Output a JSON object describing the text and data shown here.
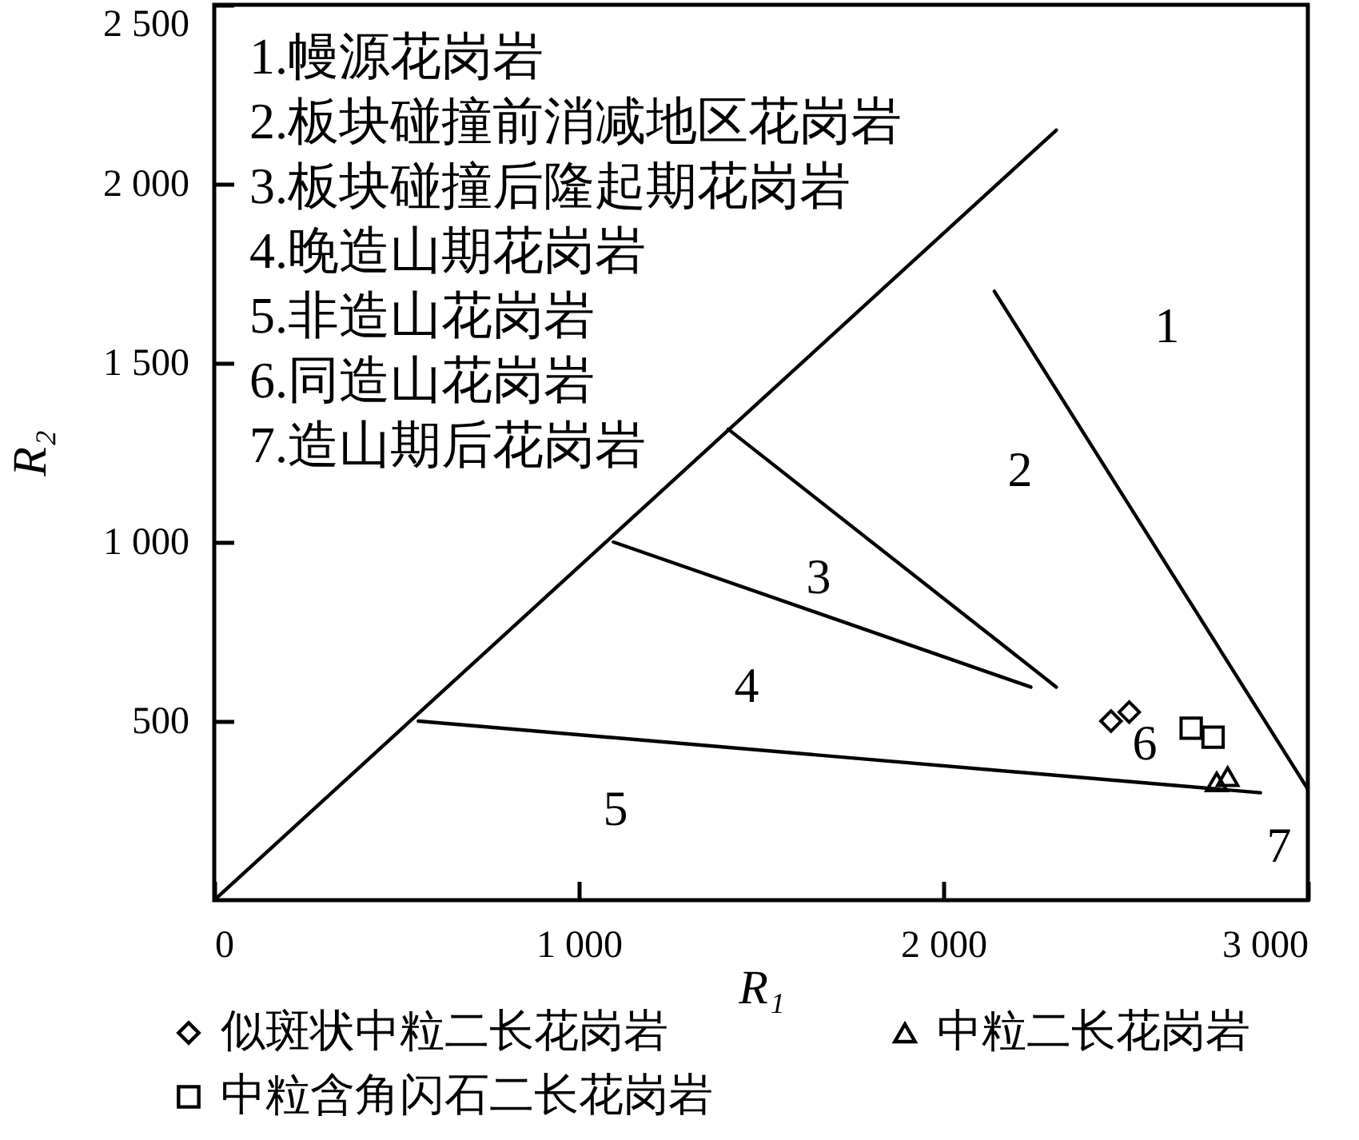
{
  "chart_data": {
    "type": "scatter",
    "xlabel": "R₁",
    "ylabel": "R₂",
    "xlim": [
      0,
      3000
    ],
    "ylim": [
      0,
      2500
    ],
    "xticks": [
      0,
      {
        "value": 1000,
        "label": "1 000"
      },
      {
        "value": 2000,
        "label": "2 000"
      },
      {
        "value": 3000,
        "label": "3 000"
      }
    ],
    "yticks": [
      500,
      {
        "value": 1000,
        "label": "1 000"
      },
      {
        "value": 1500,
        "label": "1 500"
      },
      {
        "value": 2000,
        "label": "2 000"
      },
      {
        "value": 2500,
        "label": "2 500"
      }
    ],
    "grid": false,
    "legend": "bottom",
    "series": [
      {
        "type": "line",
        "color": "#000000",
        "x": [
          0,
          2310
        ],
        "values": [
          0,
          2150
        ]
      },
      {
        "type": "line",
        "color": "#000000",
        "x": [
          2140,
          3000
        ],
        "values": [
          1700,
          310
        ]
      },
      {
        "type": "line",
        "color": "#000000",
        "x": [
          1410,
          2310
        ],
        "values": [
          1315,
          595
        ]
      },
      {
        "type": "line",
        "color": "#000000",
        "x": [
          1095,
          2240
        ],
        "values": [
          1000,
          595
        ]
      },
      {
        "type": "line",
        "color": "#000000",
        "x": [
          560,
          2870
        ],
        "values": [
          500,
          300
        ]
      },
      {
        "name": "似斑状中粒二长花岗岩",
        "type": "scatter",
        "marker": "diamond",
        "color": "#000000",
        "x": [
          2460,
          2510
        ],
        "values": [
          500,
          525
        ]
      },
      {
        "name": "中粒二长花岗岩",
        "type": "scatter",
        "marker": "triangle",
        "color": "#000000",
        "x": [
          2750,
          2780
        ],
        "values": [
          330,
          345
        ]
      },
      {
        "name": "中粒含角闪石二长花岗岩",
        "type": "scatter",
        "marker": "square",
        "color": "#000000",
        "x": [
          2680,
          2740
        ],
        "values": [
          480,
          455
        ]
      }
    ],
    "annotations": [
      "1.幔源花岗岩",
      "2.板块碰撞前消减地区花岗岩",
      "3.板块碰撞后隆起期花岗岩",
      "4.晚造山期花岗岩",
      "5.非造山花岗岩",
      "6.同造山花岗岩",
      "7.造山期后花岗岩",
      "1",
      "2",
      "3",
      "4",
      "5",
      "6",
      "7"
    ]
  }
}
